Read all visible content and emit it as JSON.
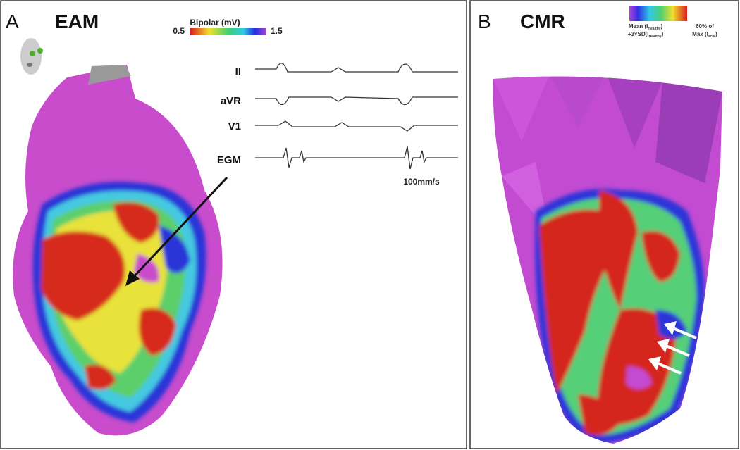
{
  "panel_a": {
    "label": "A",
    "title": "EAM",
    "colorbar": {
      "title": "Bipolar (mV)",
      "min_label": "0.5",
      "max_label": "1.5"
    },
    "traces": [
      "II",
      "aVR",
      "V1",
      "EGM"
    ],
    "scale_label": "100mm/s"
  },
  "panel_b": {
    "label": "B",
    "title": "CMR",
    "colorbar": {
      "low": [
        {
          "text": "Mean (I",
          "sub": "Healthy",
          "end": ")"
        },
        {
          "text": "+3×SD(I",
          "sub": "Healthy",
          "end": ")"
        }
      ],
      "high": [
        {
          "text": "60% of"
        },
        {
          "text": "Max (I",
          "sub": "scar",
          "end": ")"
        }
      ]
    }
  }
}
